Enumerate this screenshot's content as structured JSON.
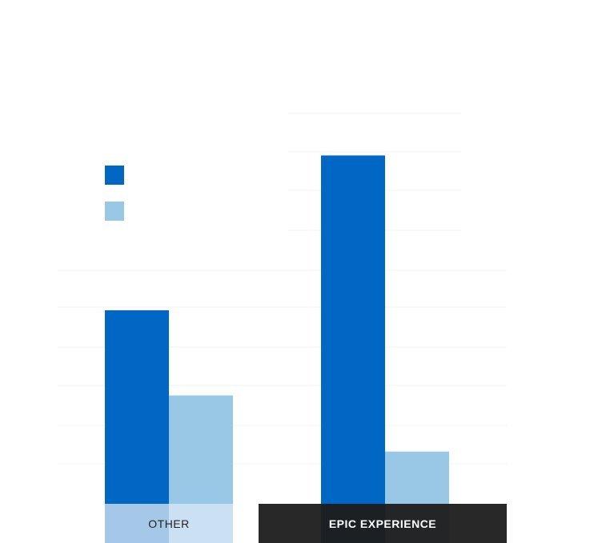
{
  "chart_data": {
    "type": "bar",
    "categories": [
      "OTHER",
      "EPIC EXPERIENCE"
    ],
    "series": [
      {
        "color": "#0068c4",
        "values": [
          100,
          180
        ]
      },
      {
        "color": "#99c8e6",
        "values": [
          56,
          27
        ]
      }
    ],
    "ylim": [
      0,
      200
    ],
    "grid": true,
    "legend": "top-left"
  }
}
